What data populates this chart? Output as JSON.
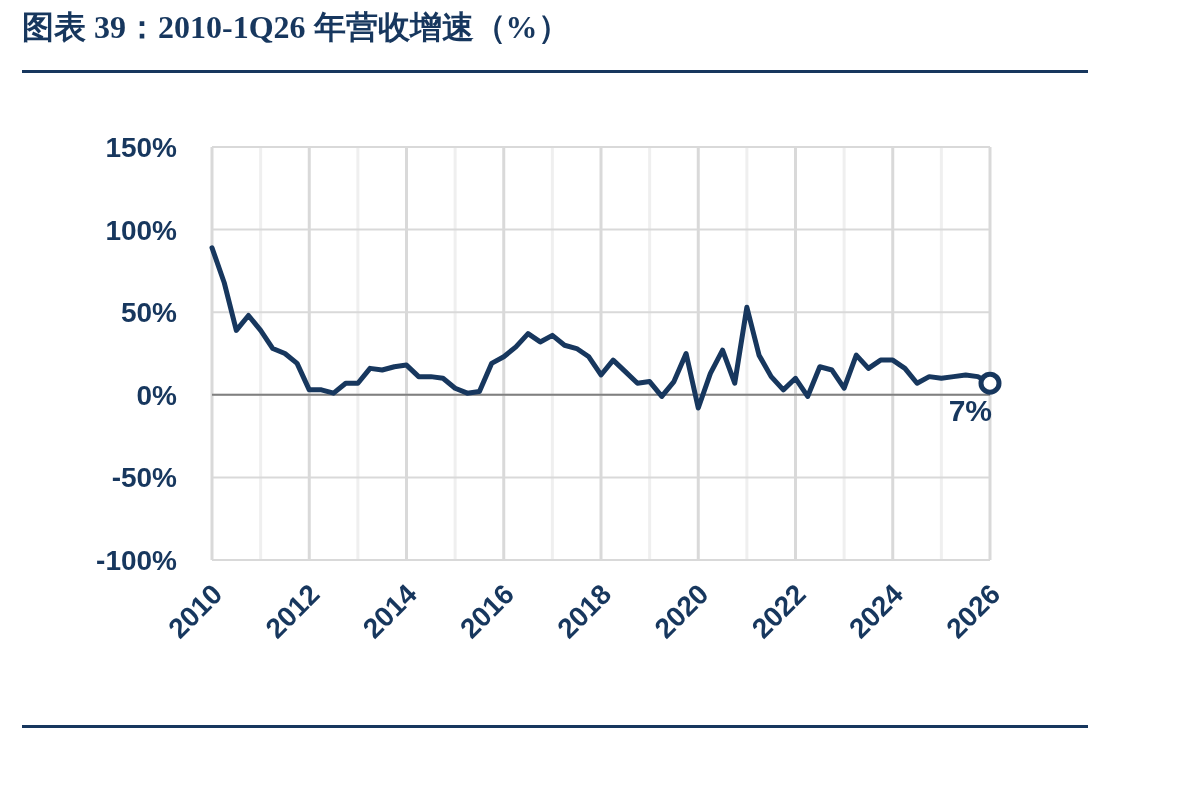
{
  "chart_data": {
    "type": "line",
    "title": "图表 39：2010-1Q26 年营收增速（%）",
    "x": [
      2010,
      2010.25,
      2010.5,
      2010.75,
      2011,
      2011.25,
      2011.5,
      2011.75,
      2012,
      2012.25,
      2012.5,
      2012.75,
      2013,
      2013.25,
      2013.5,
      2013.75,
      2014,
      2014.25,
      2014.5,
      2014.75,
      2015,
      2015.25,
      2015.5,
      2015.75,
      2016,
      2016.25,
      2016.5,
      2016.75,
      2017,
      2017.25,
      2017.5,
      2017.75,
      2018,
      2018.25,
      2018.5,
      2018.75,
      2019,
      2019.25,
      2019.5,
      2019.75,
      2020,
      2020.25,
      2020.5,
      2020.75,
      2021,
      2021.25,
      2021.5,
      2021.75,
      2022,
      2022.25,
      2022.5,
      2022.75,
      2023,
      2023.25,
      2023.5,
      2023.75,
      2024,
      2024.25,
      2024.5,
      2024.75,
      2025,
      2025.25,
      2025.5,
      2025.75,
      2026
    ],
    "series": [
      {
        "color": "#17375e",
        "values": [
          89,
          68,
          39,
          48,
          39,
          28,
          25,
          19,
          3,
          3,
          1,
          7,
          7,
          16,
          15,
          17,
          18,
          11,
          11,
          10,
          4,
          1,
          2,
          19,
          23,
          29,
          37,
          32,
          36,
          30,
          28,
          23,
          12,
          21,
          14,
          7,
          8,
          -1,
          8,
          25,
          -8,
          13,
          27,
          7,
          53,
          24,
          11,
          3,
          10,
          -1,
          17,
          15,
          4,
          24,
          16,
          21,
          21,
          16,
          7,
          11,
          10,
          11,
          12,
          11,
          7
        ]
      }
    ],
    "xlim": [
      2010,
      2026
    ],
    "xticks": [
      2010,
      {
        "value": 2011,
        "label": null
      },
      2012,
      {
        "value": 2013,
        "label": null
      },
      2014,
      {
        "value": 2015,
        "label": null
      },
      2016,
      {
        "value": 2017,
        "label": null
      },
      2018,
      {
        "value": 2019,
        "label": null
      },
      2020,
      {
        "value": 2021,
        "label": null
      },
      2022,
      {
        "value": 2023,
        "label": null
      },
      2024,
      {
        "value": 2025,
        "label": null
      },
      2026
    ],
    "ylim": [
      -100,
      150
    ],
    "yticks": [
      {
        "value": -100,
        "label": "-100%"
      },
      {
        "value": -50,
        "label": "-50%"
      },
      {
        "value": 0,
        "label": "0%"
      },
      {
        "value": 50,
        "label": "50%"
      },
      {
        "value": 100,
        "label": "100%"
      },
      {
        "value": 150,
        "label": "150%"
      }
    ],
    "grid": true,
    "marker": "none",
    "line_style": "solid",
    "annotations": [
      {
        "text": "7%",
        "x": 2026,
        "y": 7
      }
    ]
  }
}
